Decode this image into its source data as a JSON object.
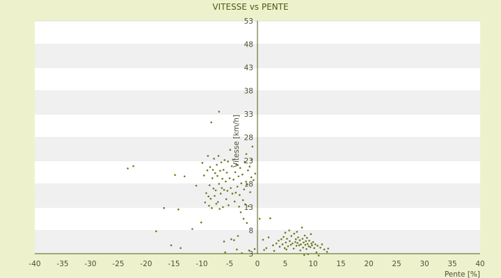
{
  "chart_data": {
    "type": "scatter",
    "title": "VITESSE vs PENTE",
    "xlabel": "Pente [%]",
    "ylabel": "Vitesse [km/h]",
    "xlim": [
      -40,
      40
    ],
    "ylim": [
      3,
      53
    ],
    "xticks": [
      -40,
      -35,
      -30,
      -25,
      -20,
      -15,
      -10,
      -5,
      0,
      5,
      10,
      15,
      20,
      25,
      30,
      35,
      40
    ],
    "yticks": [
      3,
      8,
      13,
      18,
      23,
      28,
      33,
      38,
      43,
      48,
      53
    ],
    "grid": "horizontal bands",
    "legend": "none",
    "colors": {
      "background": "#eef2cc",
      "band_light": "#ffffff",
      "band_dark": "#f0f0f0",
      "axis": "#4d5a12",
      "point": "#6b7a1a"
    },
    "series": [
      {
        "points": [
          [
            -23.3,
            21.3
          ],
          [
            -22.3,
            21.8
          ],
          [
            -18.2,
            7.8
          ],
          [
            -16.8,
            12.8
          ],
          [
            -15.5,
            4.8
          ],
          [
            -14.8,
            19.9
          ],
          [
            -14.2,
            12.5
          ],
          [
            -13.8,
            4.2
          ],
          [
            -13.1,
            19.6
          ],
          [
            -11.7,
            8.3
          ],
          [
            -11.0,
            17.6
          ],
          [
            -10.1,
            9.7
          ],
          [
            -9.9,
            22.5
          ],
          [
            -9.6,
            19.8
          ],
          [
            -9.4,
            14.0
          ],
          [
            -9.2,
            16.0
          ],
          [
            -9.0,
            20.9
          ],
          [
            -8.9,
            24.0
          ],
          [
            -8.8,
            15.3
          ],
          [
            -8.7,
            13.3
          ],
          [
            -8.6,
            17.7
          ],
          [
            -8.5,
            21.6
          ],
          [
            -8.4,
            14.8
          ],
          [
            -8.3,
            31.2
          ],
          [
            -8.2,
            12.8
          ],
          [
            -8.1,
            19.2
          ],
          [
            -8.0,
            21.0
          ],
          [
            -7.9,
            17.0
          ],
          [
            -7.8,
            23.4
          ],
          [
            -7.7,
            15.4
          ],
          [
            -7.6,
            20.3
          ],
          [
            -7.5,
            16.6
          ],
          [
            -7.4,
            13.7
          ],
          [
            -7.3,
            22.1
          ],
          [
            -7.2,
            19.7
          ],
          [
            -7.1,
            14.1
          ],
          [
            -7.0,
            24.0
          ],
          [
            -6.9,
            18.0
          ],
          [
            -6.9,
            33.5
          ],
          [
            -6.8,
            12.6
          ],
          [
            -6.7,
            20.8
          ],
          [
            -6.6,
            15.9
          ],
          [
            -6.5,
            22.6
          ],
          [
            -6.4,
            17.1
          ],
          [
            -6.3,
            19.1
          ],
          [
            -6.2,
            13.0
          ],
          [
            -6.1,
            21.0
          ],
          [
            -6.0,
            16.7
          ],
          [
            -6.0,
            5.6
          ],
          [
            -5.9,
            23.1
          ],
          [
            -5.8,
            3.3
          ],
          [
            -5.7,
            18.5
          ],
          [
            -5.6,
            14.7
          ],
          [
            -5.5,
            20.4
          ],
          [
            -5.4,
            16.5
          ],
          [
            -5.3,
            22.8
          ],
          [
            -5.2,
            13.4
          ],
          [
            -5.0,
            19.2
          ],
          [
            -4.9,
            25.3
          ],
          [
            -4.8,
            17.1
          ],
          [
            -4.7,
            6.1
          ],
          [
            -4.6,
            21.8
          ],
          [
            -4.5,
            15.9
          ],
          [
            -4.4,
            23.2
          ],
          [
            -4.3,
            18.9
          ],
          [
            -4.2,
            5.9
          ],
          [
            -4.1,
            14.2
          ],
          [
            -4.0,
            20.5
          ],
          [
            -3.9,
            16.1
          ],
          [
            -3.8,
            22.2
          ],
          [
            -3.7,
            3.9
          ],
          [
            -3.6,
            17.4
          ],
          [
            -3.5,
            6.8
          ],
          [
            -3.4,
            19.6
          ],
          [
            -3.3,
            13.1
          ],
          [
            -3.2,
            15.6
          ],
          [
            -3.1,
            21.4
          ],
          [
            -3.0,
            11.9
          ],
          [
            -2.9,
            18.1
          ],
          [
            -2.8,
            3.1
          ],
          [
            -2.7,
            20.0
          ],
          [
            -2.6,
            14.5
          ],
          [
            -2.5,
            10.5
          ],
          [
            -2.4,
            16.8
          ],
          [
            -2.3,
            22.7
          ],
          [
            -2.2,
            13.6
          ],
          [
            -2.0,
            24.4
          ],
          [
            -1.9,
            9.6
          ],
          [
            -1.8,
            17.9
          ],
          [
            -1.7,
            20.9
          ],
          [
            -1.6,
            13.2
          ],
          [
            -1.5,
            3.7
          ],
          [
            -1.4,
            21.7
          ],
          [
            -1.3,
            16.2
          ],
          [
            -1.1,
            19.4
          ],
          [
            -1.0,
            23.2
          ],
          [
            -0.9,
            26.0
          ],
          [
            -0.7,
            18.8
          ],
          [
            -0.5,
            4.0
          ],
          [
            -0.4,
            20.2
          ],
          [
            0.4,
            10.5
          ],
          [
            1.0,
            6.0
          ],
          [
            1.2,
            3.8
          ],
          [
            1.6,
            4.2
          ],
          [
            2.0,
            6.5
          ],
          [
            2.3,
            10.6
          ],
          [
            2.8,
            4.8
          ],
          [
            3.0,
            3.6
          ],
          [
            3.4,
            5.2
          ],
          [
            3.8,
            5.8
          ],
          [
            4.0,
            4.5
          ],
          [
            4.3,
            6.1
          ],
          [
            4.5,
            5.0
          ],
          [
            4.7,
            6.6
          ],
          [
            4.9,
            4.2
          ],
          [
            5.0,
            7.5
          ],
          [
            5.1,
            5.4
          ],
          [
            5.2,
            3.9
          ],
          [
            5.3,
            6.2
          ],
          [
            5.5,
            4.6
          ],
          [
            5.7,
            8.0
          ],
          [
            5.8,
            5.7
          ],
          [
            6.0,
            4.9
          ],
          [
            6.1,
            6.8
          ],
          [
            6.3,
            5.2
          ],
          [
            6.5,
            4.1
          ],
          [
            6.6,
            7.3
          ],
          [
            6.8,
            5.5
          ],
          [
            6.9,
            6.1
          ],
          [
            7.0,
            4.7
          ],
          [
            7.1,
            7.7
          ],
          [
            7.2,
            5.3
          ],
          [
            7.3,
            6.5
          ],
          [
            7.5,
            4.8
          ],
          [
            7.6,
            5.9
          ],
          [
            7.7,
            3.7
          ],
          [
            7.8,
            5.0
          ],
          [
            8.0,
            8.6
          ],
          [
            8.1,
            6.2
          ],
          [
            8.2,
            4.3
          ],
          [
            8.3,
            5.4
          ],
          [
            8.4,
            2.7
          ],
          [
            8.5,
            6.9
          ],
          [
            8.6,
            4.9
          ],
          [
            8.7,
            5.7
          ],
          [
            8.8,
            4.0
          ],
          [
            8.9,
            6.4
          ],
          [
            9.0,
            5.1
          ],
          [
            9.1,
            2.9
          ],
          [
            9.2,
            4.6
          ],
          [
            9.3,
            5.8
          ],
          [
            9.5,
            4.4
          ],
          [
            9.6,
            7.2
          ],
          [
            9.7,
            5.2
          ],
          [
            9.8,
            4.8
          ],
          [
            10.0,
            5.5
          ],
          [
            10.2,
            4.2
          ],
          [
            10.4,
            5.0
          ],
          [
            10.6,
            3.3
          ],
          [
            10.8,
            4.7
          ],
          [
            11.0,
            2.6
          ],
          [
            11.3,
            4.3
          ],
          [
            11.6,
            5.0
          ],
          [
            12.0,
            3.9
          ],
          [
            12.5,
            3.4
          ],
          [
            12.7,
            4.1
          ]
        ]
      }
    ]
  }
}
